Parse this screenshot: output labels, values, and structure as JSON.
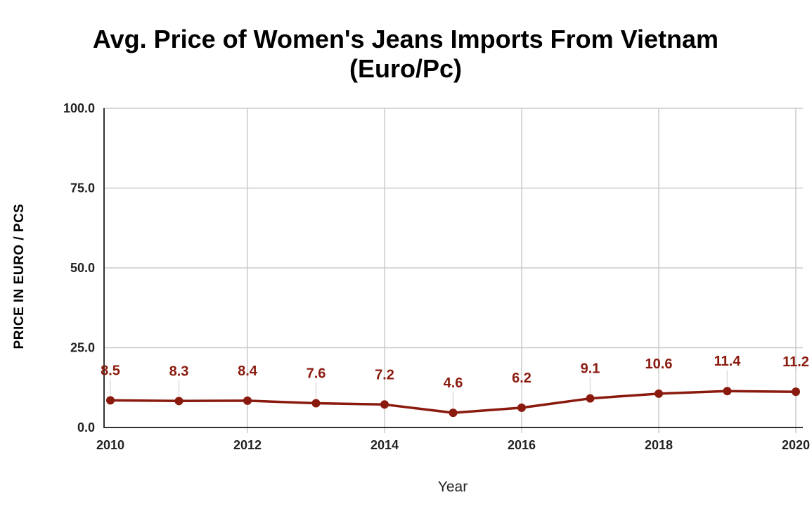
{
  "chart_data": {
    "type": "line",
    "title_lines": [
      "Avg. Price of Women's Jeans Imports From Vietnam",
      "(Euro/Pc)"
    ],
    "xlabel": "Year",
    "ylabel": "PRICE IN EURO / PCS",
    "x": [
      2010,
      2011,
      2012,
      2013,
      2014,
      2015,
      2016,
      2017,
      2018,
      2019,
      2020
    ],
    "x_tick_labels": [
      "2010",
      "2012",
      "2014",
      "2016",
      "2018",
      "2020"
    ],
    "x_ticks": [
      2010,
      2012,
      2014,
      2016,
      2018,
      2020
    ],
    "y_tick_labels": [
      "100.0",
      "75.0",
      "50.0",
      "25.0",
      "0.0"
    ],
    "y_ticks": [
      100,
      75,
      50,
      25,
      0
    ],
    "xlim": [
      2010,
      2020
    ],
    "ylim": [
      0,
      100
    ],
    "grid": true,
    "series": [
      {
        "values": [
          8.5,
          8.3,
          8.4,
          7.6,
          7.2,
          4.6,
          6.2,
          9.1,
          10.6,
          11.4,
          11.2
        ],
        "labels": [
          "8.5",
          "8.3",
          "8.4",
          "7.6",
          "7.2",
          "4.6",
          "6.2",
          "9.1",
          "10.6",
          "11.4",
          "11.2"
        ],
        "color": "#8b1a0e"
      }
    ]
  }
}
